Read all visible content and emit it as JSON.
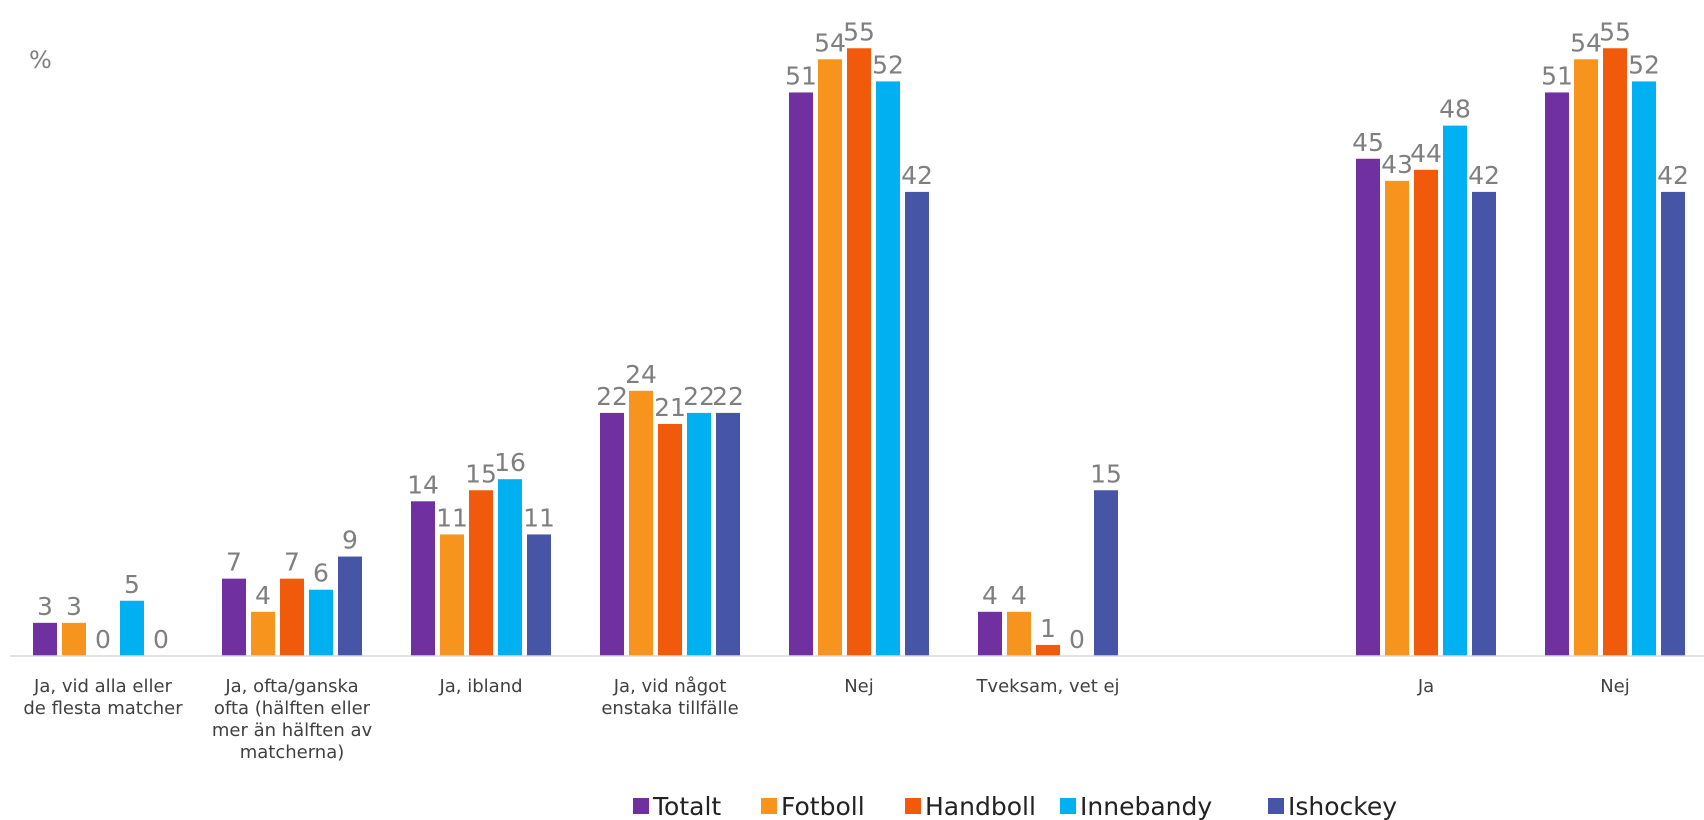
{
  "chart_data": {
    "type": "bar",
    "unit_label": "%",
    "categories": [
      [
        "Ja, vid alla eller",
        "de flesta matcher"
      ],
      [
        "Ja, ofta/ganska",
        "ofta (hälften eller",
        "mer än hälften av",
        "matcherna)"
      ],
      [
        "Ja, ibland"
      ],
      [
        "Ja, vid något",
        "enstaka tillfälle"
      ],
      [
        "Nej"
      ],
      [
        "Tveksam, vet ej"
      ],
      [],
      [
        "Ja"
      ],
      [
        "Nej"
      ]
    ],
    "series": [
      {
        "name": "Totalt",
        "color": "#7030A0",
        "values": [
          3,
          7,
          14,
          22,
          51,
          4,
          null,
          45,
          51
        ]
      },
      {
        "name": "Fotboll",
        "color": "#F7941D",
        "values": [
          3,
          4,
          11,
          24,
          54,
          4,
          null,
          43,
          54
        ]
      },
      {
        "name": "Handboll",
        "color": "#F05A0A",
        "values": [
          0,
          7,
          15,
          21,
          55,
          1,
          null,
          44,
          55
        ]
      },
      {
        "name": "Innebandy",
        "color": "#00B0F0",
        "values": [
          5,
          6,
          16,
          22,
          52,
          0,
          null,
          48,
          52
        ]
      },
      {
        "name": "Ishockey",
        "color": "#4755A6",
        "values": [
          0,
          9,
          11,
          22,
          42,
          15,
          null,
          42,
          42
        ]
      }
    ],
    "ylim": [
      0,
      57
    ],
    "grid": false,
    "legend_position": "bottom",
    "axis_color": "#d9d9d9",
    "label_color": "#7f7f7f"
  }
}
